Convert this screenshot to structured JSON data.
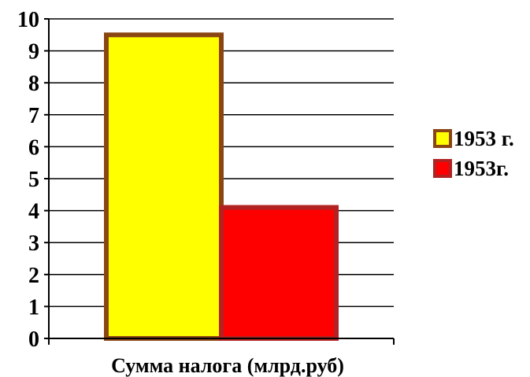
{
  "chart_data": {
    "type": "bar",
    "categories": [
      "Сумма налога (млрд.руб)"
    ],
    "series": [
      {
        "name": "1953 г.",
        "values": [
          9.5
        ],
        "fill": "#ffff00",
        "stroke": "#8b4513"
      },
      {
        "name": "1953г.",
        "values": [
          4.1
        ],
        "fill": "#ff0000",
        "stroke": "#b22222"
      }
    ],
    "xlabel": "Сумма налога (млрд.руб)",
    "ylabel": "",
    "ylim": [
      0,
      10
    ],
    "yticks": [
      0,
      1,
      2,
      3,
      4,
      5,
      6,
      7,
      8,
      9,
      10
    ],
    "grid": true,
    "legend": "right"
  }
}
